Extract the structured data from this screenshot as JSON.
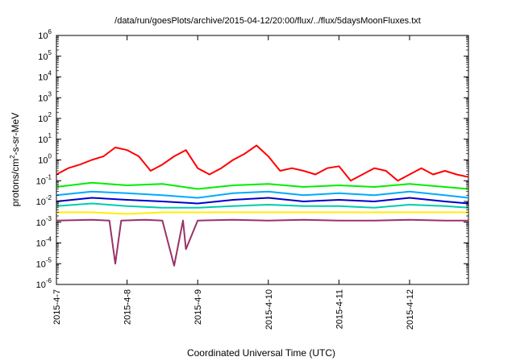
{
  "chart_data": {
    "type": "line",
    "title": "/data/run/goesPlots/archive/2015-04-12/20:00/flux/../flux/5daysMoonFluxes.txt",
    "xlabel": "Coordinated Universal Time (UTC)",
    "ylabel_html": "protons/cm²-s-sr-MeV",
    "ylabel": {
      "base": "protons/cm",
      "sup": "2",
      "rest": "-s-sr-MeV"
    },
    "y_scale": "log",
    "ylim_exp": [
      -6,
      6
    ],
    "xlim": [
      "2015-04-07",
      "2015-04-12T20:00"
    ],
    "x_ticks": [
      "2015-4-7",
      "2015-4-8",
      "2015-4-9",
      "2015-4-10",
      "2015-4-11",
      "2015-4-12"
    ],
    "y_ticks": [
      {
        "base": "10",
        "exp": "-6"
      },
      {
        "base": "10",
        "exp": "-5"
      },
      {
        "base": "10",
        "exp": "-4"
      },
      {
        "base": "10",
        "exp": "-3"
      },
      {
        "base": "10",
        "exp": "-2"
      },
      {
        "base": "10",
        "exp": "-1"
      },
      {
        "base": "10",
        "exp": "0"
      },
      {
        "base": "10",
        "exp": "1"
      },
      {
        "base": "10",
        "exp": "2"
      },
      {
        "base": "10",
        "exp": "3"
      },
      {
        "base": "10",
        "exp": "4"
      },
      {
        "base": "10",
        "exp": "5"
      },
      {
        "base": "10",
        "exp": "6"
      }
    ],
    "grid": false,
    "legend": "none",
    "series": [
      {
        "color": "#ff0000",
        "x": [
          "2015-04-07T00:00",
          "2015-04-07T04:00",
          "2015-04-07T08:00",
          "2015-04-07T12:00",
          "2015-04-07T16:00",
          "2015-04-07T20:00",
          "2015-04-08T00:00",
          "2015-04-08T04:00",
          "2015-04-08T08:00",
          "2015-04-08T12:00",
          "2015-04-08T16:00",
          "2015-04-08T20:00",
          "2015-04-09T00:00",
          "2015-04-09T04:00",
          "2015-04-09T08:00",
          "2015-04-09T12:00",
          "2015-04-09T16:00",
          "2015-04-09T20:00",
          "2015-04-10T00:00",
          "2015-04-10T04:00",
          "2015-04-10T08:00",
          "2015-04-10T12:00",
          "2015-04-10T16:00",
          "2015-04-10T20:00",
          "2015-04-11T00:00",
          "2015-04-11T04:00",
          "2015-04-11T08:00",
          "2015-04-11T12:00",
          "2015-04-11T16:00",
          "2015-04-11T20:00",
          "2015-04-12T00:00",
          "2015-04-12T04:00",
          "2015-04-12T08:00",
          "2015-04-12T12:00",
          "2015-04-12T16:00",
          "2015-04-12T20:00"
        ],
        "y": [
          0.2,
          0.4,
          0.6,
          1.0,
          1.5,
          4.0,
          3.0,
          1.5,
          0.3,
          0.6,
          1.5,
          3.0,
          0.4,
          0.2,
          0.4,
          1.0,
          2.0,
          5.0,
          1.5,
          0.3,
          0.4,
          0.3,
          0.2,
          0.4,
          0.5,
          0.1,
          0.2,
          0.4,
          0.3,
          0.1,
          0.2,
          0.4,
          0.2,
          0.3,
          0.2,
          0.15
        ]
      },
      {
        "color": "#00ee00",
        "x": [
          "2015-04-07T00:00",
          "2015-04-07T12:00",
          "2015-04-08T00:00",
          "2015-04-08T12:00",
          "2015-04-09T00:00",
          "2015-04-09T12:00",
          "2015-04-10T00:00",
          "2015-04-10T12:00",
          "2015-04-11T00:00",
          "2015-04-11T12:00",
          "2015-04-12T00:00",
          "2015-04-12T12:00",
          "2015-04-12T20:00"
        ],
        "y": [
          0.05,
          0.08,
          0.06,
          0.07,
          0.04,
          0.06,
          0.07,
          0.05,
          0.06,
          0.05,
          0.07,
          0.05,
          0.04
        ]
      },
      {
        "color": "#00aaff",
        "x": [
          "2015-04-07T00:00",
          "2015-04-07T12:00",
          "2015-04-08T00:00",
          "2015-04-08T12:00",
          "2015-04-09T00:00",
          "2015-04-09T12:00",
          "2015-04-10T00:00",
          "2015-04-10T12:00",
          "2015-04-11T00:00",
          "2015-04-11T12:00",
          "2015-04-12T00:00",
          "2015-04-12T12:00",
          "2015-04-12T20:00"
        ],
        "y": [
          0.02,
          0.03,
          0.025,
          0.02,
          0.015,
          0.025,
          0.03,
          0.02,
          0.025,
          0.02,
          0.03,
          0.02,
          0.015
        ]
      },
      {
        "color": "#0000cc",
        "x": [
          "2015-04-07T00:00",
          "2015-04-07T12:00",
          "2015-04-08T00:00",
          "2015-04-08T12:00",
          "2015-04-09T00:00",
          "2015-04-09T12:00",
          "2015-04-10T00:00",
          "2015-04-10T12:00",
          "2015-04-11T00:00",
          "2015-04-11T12:00",
          "2015-04-12T00:00",
          "2015-04-12T12:00",
          "2015-04-12T20:00"
        ],
        "y": [
          0.01,
          0.015,
          0.012,
          0.01,
          0.008,
          0.012,
          0.015,
          0.01,
          0.012,
          0.01,
          0.015,
          0.01,
          0.008
        ]
      },
      {
        "color": "#00ccaa",
        "x": [
          "2015-04-07T00:00",
          "2015-04-07T12:00",
          "2015-04-08T00:00",
          "2015-04-08T12:00",
          "2015-04-09T00:00",
          "2015-04-09T12:00",
          "2015-04-10T00:00",
          "2015-04-10T12:00",
          "2015-04-11T00:00",
          "2015-04-11T12:00",
          "2015-04-12T00:00",
          "2015-04-12T12:00",
          "2015-04-12T20:00"
        ],
        "y": [
          0.006,
          0.008,
          0.006,
          0.005,
          0.005,
          0.006,
          0.007,
          0.006,
          0.006,
          0.005,
          0.007,
          0.006,
          0.005
        ]
      },
      {
        "color": "#ffee00",
        "x": [
          "2015-04-07T00:00",
          "2015-04-07T12:00",
          "2015-04-08T00:00",
          "2015-04-08T12:00",
          "2015-04-09T00:00",
          "2015-04-09T12:00",
          "2015-04-10T00:00",
          "2015-04-10T12:00",
          "2015-04-11T00:00",
          "2015-04-11T12:00",
          "2015-04-12T00:00",
          "2015-04-12T12:00",
          "2015-04-12T20:00"
        ],
        "y": [
          0.003,
          0.003,
          0.0025,
          0.003,
          0.003,
          0.003,
          0.003,
          0.003,
          0.003,
          0.003,
          0.003,
          0.003,
          0.003
        ]
      },
      {
        "color": "#993366",
        "x": [
          "2015-04-07T00:00",
          "2015-04-07T12:00",
          "2015-04-07T18:00",
          "2015-04-07T20:00",
          "2015-04-07T22:00",
          "2015-04-08T06:00",
          "2015-04-08T12:00",
          "2015-04-08T16:00",
          "2015-04-08T19:00",
          "2015-04-08T20:00",
          "2015-04-09T00:00",
          "2015-04-09T12:00",
          "2015-04-10T00:00",
          "2015-04-10T12:00",
          "2015-04-11T00:00",
          "2015-04-11T12:00",
          "2015-04-12T00:00",
          "2015-04-12T12:00",
          "2015-04-12T20:00"
        ],
        "y": [
          0.0012,
          0.0013,
          0.0012,
          1e-05,
          0.0012,
          0.0013,
          0.0012,
          8e-06,
          0.0012,
          5e-05,
          0.0012,
          0.0013,
          0.0012,
          0.0013,
          0.0012,
          0.0012,
          0.0013,
          0.0012,
          0.0012
        ]
      }
    ]
  }
}
